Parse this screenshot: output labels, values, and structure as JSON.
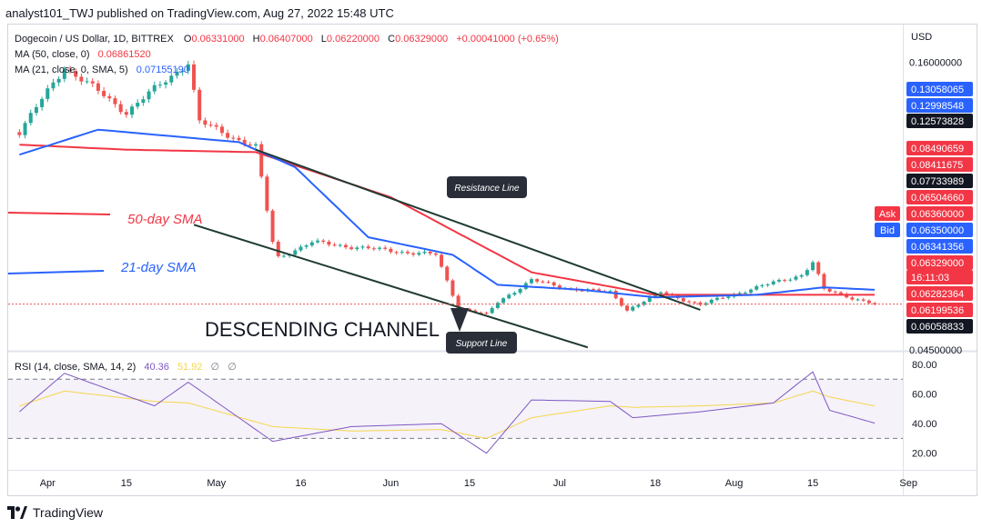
{
  "header": {
    "publisher": "analyst101_TWJ published on TradingView.com, Aug 27, 2022 15:48 UTC"
  },
  "legend": {
    "symbol": "Dogecoin / US Dollar, 1D, BITTREX",
    "open_label": "O",
    "open": "0.06331000",
    "high_label": "H",
    "high": "0.06407000",
    "low_label": "L",
    "low": "0.06220000",
    "close_label": "C",
    "close": "0.06329000",
    "change": "+0.00041000 (+0.65%)",
    "ma50_label": "MA (50, close, 0)",
    "ma50_value": "0.06861520",
    "ma21_label": "MA (21, close, 0, SMA, 5)",
    "ma21_value": "0.07155190"
  },
  "rsi_legend": {
    "label": "RSI (14, close, SMA, 14, 2)",
    "rsi_value": "40.36",
    "sma_value": "51.92",
    "flag1": "∅",
    "flag2": "∅"
  },
  "annotations": {
    "sma50_text": "50-day SMA",
    "sma21_text": "21-day SMA",
    "channel_text": "DESCENDING CHANNEL",
    "resistance_label": "Resistance Line",
    "support_label": "Support Line"
  },
  "price_axis": {
    "currency": "USD",
    "ticks": [
      "0.16000000",
      "0.12000000",
      "0.04500000"
    ],
    "tags": [
      {
        "text": "0.13058065",
        "fill": "#2962ff",
        "text_color": "#ffffff"
      },
      {
        "text": "0.12998548",
        "fill": "#2962ff",
        "text_color": "#ffffff"
      },
      {
        "text": "0.12573828",
        "fill": "#131722",
        "text_color": "#ffffff"
      },
      {
        "text": "0.08490659",
        "fill": "#f23645",
        "text_color": "#ffffff"
      },
      {
        "text": "0.08411675",
        "fill": "#f23645",
        "text_color": "#ffffff"
      },
      {
        "text": "0.07733989",
        "fill": "#131722",
        "text_color": "#ffffff"
      },
      {
        "text": "0.06504660",
        "fill": "#f23645",
        "text_color": "#ffffff"
      },
      {
        "text": "0.06360000",
        "fill": "#f23645",
        "text_color": "#ffffff",
        "tag": "Ask"
      },
      {
        "text": "0.06350000",
        "fill": "#2962ff",
        "text_color": "#ffffff",
        "tag": "Bid"
      },
      {
        "text": "0.06341356",
        "fill": "#2962ff",
        "text_color": "#ffffff"
      },
      {
        "text": "0.06329000",
        "fill": "#f23645",
        "text_color": "#ffffff"
      },
      {
        "text": "16:11:03",
        "fill": "#f23645",
        "text_color": "#ffffff"
      },
      {
        "text": "0.06282364",
        "fill": "#f23645",
        "text_color": "#ffffff"
      },
      {
        "text": "0.06199536",
        "fill": "#f23645",
        "text_color": "#ffffff"
      },
      {
        "text": "0.06058833",
        "fill": "#131722",
        "text_color": "#ffffff"
      }
    ]
  },
  "rsi_axis": {
    "ticks": [
      "80.00",
      "60.00",
      "40.00",
      "20.00"
    ]
  },
  "time_axis": {
    "ticks": [
      "Apr",
      "15",
      "May",
      "16",
      "Jun",
      "15",
      "Jul",
      "18",
      "Aug",
      "15",
      "Sep"
    ]
  },
  "footer": {
    "brand": "TradingView"
  },
  "colors": {
    "up": "#26a69a",
    "down": "#ef5350",
    "sma50": "#f23645",
    "sma21": "#2962ff",
    "rsi": "#7e57c2",
    "rsi_sma": "#f5d64b",
    "channel": "#1f3b33",
    "label_bg": "#2a2e39"
  },
  "chart_data": {
    "type": "candlestick",
    "title": "Dogecoin / US Dollar, 1D, BITTREX",
    "x_range": [
      "2022-03-25",
      "2022-08-31"
    ],
    "y_range_price_usd": [
      0.045,
      0.175
    ],
    "series": [
      {
        "name": "MA (50, close, 0)",
        "color": "#f23645"
      },
      {
        "name": "MA (21, close, 0, SMA, 5)",
        "color": "#2962ff"
      }
    ],
    "anchors": [
      {
        "date": "2022-03-27",
        "close": 0.132
      },
      {
        "date": "2022-04-04",
        "close": 0.158
      },
      {
        "date": "2022-04-15",
        "close": 0.14
      },
      {
        "date": "2022-04-26",
        "close": 0.16
      },
      {
        "date": "2022-04-28",
        "close": 0.136
      },
      {
        "date": "2022-05-08",
        "close": 0.126
      },
      {
        "date": "2022-05-11",
        "close": 0.088
      },
      {
        "date": "2022-05-12",
        "close": 0.082
      },
      {
        "date": "2022-05-18",
        "close": 0.088
      },
      {
        "date": "2022-05-30",
        "close": 0.085
      },
      {
        "date": "2022-06-09",
        "close": 0.083
      },
      {
        "date": "2022-06-13",
        "close": 0.062
      },
      {
        "date": "2022-06-18",
        "close": 0.059
      },
      {
        "date": "2022-06-20",
        "close": 0.064
      },
      {
        "date": "2022-06-26",
        "close": 0.073
      },
      {
        "date": "2022-07-01",
        "close": 0.07
      },
      {
        "date": "2022-07-10",
        "close": 0.068
      },
      {
        "date": "2022-07-13",
        "close": 0.061
      },
      {
        "date": "2022-07-19",
        "close": 0.068
      },
      {
        "date": "2022-07-26",
        "close": 0.063
      },
      {
        "date": "2022-08-02",
        "close": 0.068
      },
      {
        "date": "2022-08-13",
        "close": 0.075
      },
      {
        "date": "2022-08-15",
        "close": 0.08
      },
      {
        "date": "2022-08-17",
        "close": 0.069
      },
      {
        "date": "2022-08-26",
        "close": 0.0633
      }
    ],
    "sma50_anchors": [
      {
        "date": "2022-03-27",
        "value": 0.127
      },
      {
        "date": "2022-04-15",
        "value": 0.125
      },
      {
        "date": "2022-05-08",
        "value": 0.124
      },
      {
        "date": "2022-06-01",
        "value": 0.106
      },
      {
        "date": "2022-06-26",
        "value": 0.076
      },
      {
        "date": "2022-07-18",
        "value": 0.067
      },
      {
        "date": "2022-08-26",
        "value": 0.067
      }
    ],
    "sma21_anchors": [
      {
        "date": "2022-03-27",
        "value": 0.123
      },
      {
        "date": "2022-04-10",
        "value": 0.133
      },
      {
        "date": "2022-05-05",
        "value": 0.128
      },
      {
        "date": "2022-05-15",
        "value": 0.118
      },
      {
        "date": "2022-05-28",
        "value": 0.09
      },
      {
        "date": "2022-06-12",
        "value": 0.083
      },
      {
        "date": "2022-06-20",
        "value": 0.071
      },
      {
        "date": "2022-07-05",
        "value": 0.069
      },
      {
        "date": "2022-07-18",
        "value": 0.066
      },
      {
        "date": "2022-08-05",
        "value": 0.067
      },
      {
        "date": "2022-08-17",
        "value": 0.07
      },
      {
        "date": "2022-08-26",
        "value": 0.069
      }
    ],
    "rsi_anchors": [
      {
        "date": "2022-03-27",
        "rsi": 48,
        "sma": 52
      },
      {
        "date": "2022-04-04",
        "rsi": 74,
        "sma": 62
      },
      {
        "date": "2022-04-20",
        "rsi": 52,
        "sma": 55
      },
      {
        "date": "2022-04-26",
        "rsi": 68,
        "sma": 54
      },
      {
        "date": "2022-05-11",
        "rsi": 28,
        "sma": 38
      },
      {
        "date": "2022-05-25",
        "rsi": 38,
        "sma": 35
      },
      {
        "date": "2022-06-10",
        "rsi": 40,
        "sma": 36
      },
      {
        "date": "2022-06-18",
        "rsi": 20,
        "sma": 30
      },
      {
        "date": "2022-06-26",
        "rsi": 56,
        "sma": 44
      },
      {
        "date": "2022-07-10",
        "rsi": 55,
        "sma": 52
      },
      {
        "date": "2022-07-14",
        "rsi": 44,
        "sma": 51
      },
      {
        "date": "2022-07-26",
        "rsi": 48,
        "sma": 52
      },
      {
        "date": "2022-08-08",
        "rsi": 54,
        "sma": 54
      },
      {
        "date": "2022-08-15",
        "rsi": 75,
        "sma": 62
      },
      {
        "date": "2022-08-18",
        "rsi": 49,
        "sma": 58
      },
      {
        "date": "2022-08-26",
        "rsi": 40.36,
        "sma": 51.92
      }
    ],
    "resistance_line": {
      "start_date": "2022-05-08",
      "start_price": 0.125,
      "end_date": "2022-07-26",
      "end_price": 0.061
    },
    "support_line": {
      "start_date": "2022-04-27",
      "start_price": 0.095,
      "end_date": "2022-07-06",
      "end_price": 0.046
    },
    "rsi_levels": [
      70,
      30
    ]
  }
}
